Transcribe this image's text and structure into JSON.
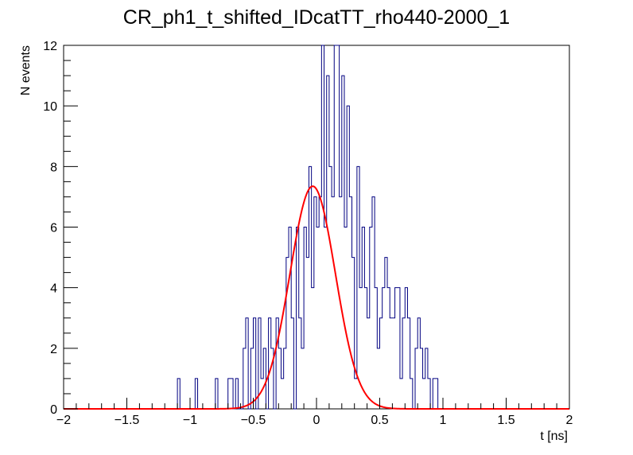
{
  "chart_data": {
    "type": "histogram",
    "title": "CR_ph1_t_shifted_IDcatTT_rho440-2000_1",
    "xlabel": "t [ns]",
    "ylabel": "N events",
    "xlim": [
      -2,
      2
    ],
    "ylim": [
      0,
      12
    ],
    "x_ticks": [
      -2,
      -1.5,
      -1,
      -0.5,
      0,
      0.5,
      1,
      1.5,
      2
    ],
    "x_tick_labels": [
      "−2",
      "−1.5",
      "−1",
      "−0.5",
      "0",
      "0.5",
      "1",
      "1.5",
      "2"
    ],
    "y_ticks": [
      0,
      2,
      4,
      6,
      8,
      10,
      12
    ],
    "y_tick_labels": [
      "0",
      "2",
      "4",
      "6",
      "8",
      "10",
      "12"
    ],
    "grid": false,
    "bin_width": 0.02,
    "series": [
      {
        "kind": "histogram",
        "color": "#000080",
        "bin_start": -2,
        "bin_width": 0.02,
        "counts": [
          0,
          0,
          0,
          0,
          0,
          0,
          0,
          0,
          0,
          0,
          0,
          0,
          0,
          0,
          0,
          0,
          0,
          0,
          0,
          0,
          0,
          0,
          0,
          0,
          0,
          0,
          0,
          0,
          0,
          0,
          0,
          0,
          0,
          0,
          0,
          0,
          0,
          0,
          0,
          0,
          0,
          0,
          0,
          0,
          0,
          1,
          0,
          0,
          0,
          0,
          0,
          0,
          1,
          0,
          0,
          0,
          0,
          0,
          0,
          0,
          1,
          0,
          0,
          0,
          0,
          1,
          1,
          0,
          1,
          0,
          0,
          2,
          3,
          0,
          2,
          3,
          0,
          3,
          1,
          2,
          0,
          3,
          2,
          0,
          3,
          2,
          1,
          2,
          5,
          6,
          3,
          0,
          6,
          3,
          2,
          6,
          5,
          8,
          4,
          7,
          6,
          7,
          12,
          6,
          11,
          8,
          7,
          12,
          12,
          7,
          11,
          6,
          10,
          7,
          5,
          1,
          8,
          4,
          6,
          4,
          3,
          6,
          7,
          4,
          2,
          3,
          4,
          5,
          4,
          3,
          3,
          4,
          4,
          1,
          3,
          4,
          3,
          1,
          0,
          2,
          3,
          2,
          1,
          2,
          1,
          0,
          1,
          1,
          0,
          0,
          0,
          0,
          0,
          0,
          0,
          0,
          0,
          0,
          0,
          0,
          0,
          0,
          0,
          0,
          0,
          0,
          0,
          0,
          0,
          0,
          0,
          0,
          0,
          0,
          0,
          0,
          0,
          0,
          0,
          0,
          0,
          0,
          0,
          0,
          0,
          0,
          0,
          0,
          0,
          0,
          0,
          0,
          0,
          0,
          0,
          0,
          0,
          0,
          0,
          0
        ]
      },
      {
        "kind": "gaussian-fit",
        "color": "#ff0000",
        "amplitude": 7.35,
        "mean": -0.03,
        "sigma": 0.18
      }
    ]
  }
}
